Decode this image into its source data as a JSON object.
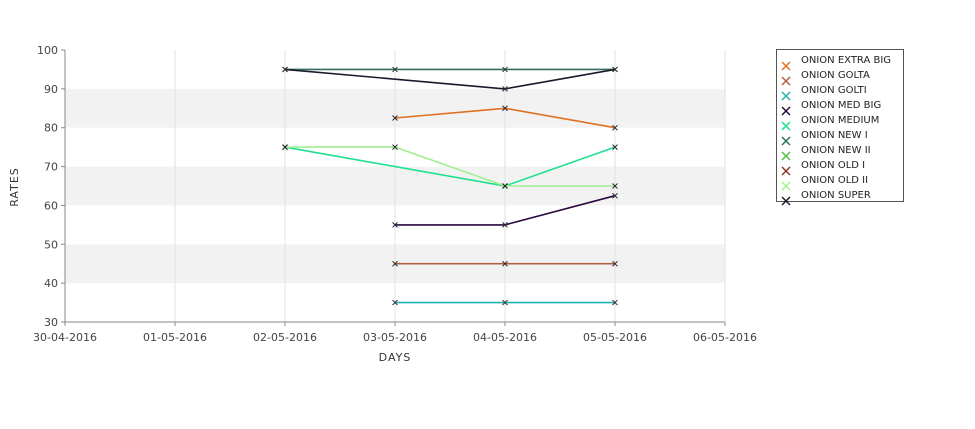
{
  "chart_data": {
    "type": "line",
    "title": "",
    "xlabel": "DAYS",
    "ylabel": "RATES",
    "categories": [
      "30-04-2016",
      "01-05-2016",
      "02-05-2016",
      "03-05-2016",
      "04-05-2016",
      "05-05-2016",
      "06-05-2016"
    ],
    "ylim": [
      30,
      100
    ],
    "yticks": [
      30,
      40,
      50,
      60,
      70,
      80,
      90,
      100
    ],
    "grid": true,
    "legend_position": "right",
    "series": [
      {
        "name": "ONION EXTRA BIG",
        "color": "#e07020",
        "values": [
          null,
          null,
          null,
          82.5,
          85,
          80,
          null
        ]
      },
      {
        "name": "ONION GOLTA",
        "color": "#b06040",
        "values": [
          null,
          null,
          null,
          45,
          45,
          45,
          null
        ]
      },
      {
        "name": "ONION GOLTI",
        "color": "#20b0b0",
        "values": [
          null,
          null,
          null,
          35,
          35,
          35,
          null
        ]
      },
      {
        "name": "ONION MED BIG",
        "color": "#2a0a40",
        "values": [
          null,
          null,
          null,
          55,
          55,
          62.5,
          null
        ]
      },
      {
        "name": "ONION MEDIUM",
        "color": "#20e090",
        "values": [
          null,
          null,
          75,
          null,
          65,
          75,
          null
        ]
      },
      {
        "name": "ONION NEW I",
        "color": "#2f6f5f",
        "values": [
          null,
          null,
          95,
          95,
          95,
          95,
          null
        ]
      },
      {
        "name": "ONION NEW II",
        "color": "#50c040",
        "values": [
          null,
          null,
          null,
          null,
          null,
          null,
          null
        ]
      },
      {
        "name": "ONION OLD I",
        "color": "#8a3a2a",
        "values": [
          null,
          null,
          null,
          null,
          null,
          null,
          null
        ]
      },
      {
        "name": "ONION OLD II",
        "color": "#a0f090",
        "values": [
          null,
          null,
          75,
          75,
          65,
          65,
          null
        ]
      },
      {
        "name": "ONION SUPER",
        "color": "#1a1a2e",
        "values": [
          null,
          null,
          95,
          null,
          90,
          95,
          null
        ]
      }
    ]
  }
}
